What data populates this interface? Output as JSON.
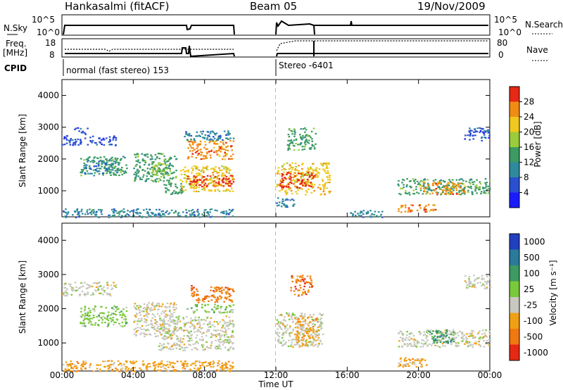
{
  "header": {
    "station": "Hankasalmi (fitACF)",
    "beam": "Beam 05",
    "date": "19/Nov/2009"
  },
  "status_panels": {
    "nsky_label": "N.Sky",
    "nsearch_label": "N.Search",
    "noise_ticks": [
      "10^5",
      "10^0"
    ],
    "freq_label_1": "Freq.",
    "freq_label_2": "[MHz]",
    "freq_ticks": [
      "18",
      "8"
    ],
    "nave_label": "Nave",
    "nave_ticks": [
      "80",
      "0"
    ],
    "cpid_label": "CPID",
    "cpid_modes": [
      {
        "name": "normal (fast stereo) 153",
        "start_hour": 0
      },
      {
        "name": "Stereo -6401",
        "start_hour": 12
      }
    ]
  },
  "panels": {
    "power": {
      "ylabel": "Slant Range [km]",
      "cbar_label": "Power [dB]"
    },
    "velocity": {
      "ylabel": "Slant Range [km]",
      "cbar_label": "Velocity [m s⁻¹]"
    },
    "xlabel": "Time UT"
  },
  "chart_data": {
    "type": "heatmap",
    "title": "Hankasalmi (fitACF)  Beam 05  19/Nov/2009",
    "x_ticks": [
      "00:00",
      "04:00",
      "08:00",
      "12:00",
      "16:00",
      "20:00",
      "00:00"
    ],
    "x_tick_hours": [
      0,
      4,
      8,
      12,
      16,
      20,
      24
    ],
    "xlim": [
      0,
      24
    ],
    "y_ticks": [
      1000,
      2000,
      3000,
      4000
    ],
    "ylim": [
      180,
      4500
    ],
    "data_gaps_hours": [
      [
        9.6,
        11.9
      ]
    ],
    "power_colorbar": {
      "tick_labels": [
        "4",
        "8",
        "12",
        "16",
        "20",
        "24",
        "28"
      ],
      "range": [
        0,
        30
      ],
      "colors": [
        "#1a1aff",
        "#2a4fd0",
        "#2f8a9e",
        "#3c9a62",
        "#9acc3c",
        "#f0c81e",
        "#f08c14",
        "#e62814"
      ]
    },
    "velocity_colorbar": {
      "tick_labels": [
        "1000",
        "500",
        "100",
        "25",
        "-25",
        "-100",
        "-500",
        "-1000"
      ],
      "colors": [
        "#2040c0",
        "#2a7a9a",
        "#3c9a62",
        "#7ac83c",
        "#c8c8c0",
        "#f0a014",
        "#f07810",
        "#e62814"
      ]
    },
    "scatter_regions_power": [
      {
        "t": [
          0.0,
          3.0
        ],
        "r": [
          2450,
          2750
        ],
        "color_index": 1
      },
      {
        "t": [
          0.6,
          1.4
        ],
        "r": [
          2800,
          3000
        ],
        "color_index": 1
      },
      {
        "t": [
          1.0,
          3.6
        ],
        "r": [
          1500,
          2100
        ],
        "color_index": 3
      },
      {
        "t": [
          1.2,
          3.0
        ],
        "r": [
          1550,
          1950
        ],
        "color_index": 2
      },
      {
        "t": [
          4.0,
          6.4
        ],
        "r": [
          1300,
          2200
        ],
        "color_index": 3
      },
      {
        "t": [
          5.0,
          6.0
        ],
        "r": [
          1500,
          1900
        ],
        "color_index": 4
      },
      {
        "t": [
          5.6,
          6.8
        ],
        "r": [
          900,
          1300
        ],
        "color_index": 3
      },
      {
        "t": [
          6.6,
          9.6
        ],
        "r": [
          1000,
          1800
        ],
        "color_index": 5
      },
      {
        "t": [
          7.0,
          9.6
        ],
        "r": [
          1150,
          1500
        ],
        "color_index": 7
      },
      {
        "t": [
          7.0,
          9.6
        ],
        "r": [
          2000,
          2600
        ],
        "color_index": 6
      },
      {
        "t": [
          6.8,
          9.6
        ],
        "r": [
          2600,
          2900
        ],
        "color_index": 2
      },
      {
        "t": [
          12.0,
          15.0
        ],
        "r": [
          900,
          1900
        ],
        "color_index": 5
      },
      {
        "t": [
          12.2,
          14.2
        ],
        "r": [
          1100,
          1600
        ],
        "color_index": 7
      },
      {
        "t": [
          12.6,
          14.2
        ],
        "r": [
          2300,
          3000
        ],
        "color_index": 3
      },
      {
        "t": [
          12.0,
          13.0
        ],
        "r": [
          500,
          800
        ],
        "color_index": 2
      },
      {
        "t": [
          18.8,
          24.0
        ],
        "r": [
          900,
          1400
        ],
        "color_index": 3
      },
      {
        "t": [
          20.0,
          22.6
        ],
        "r": [
          900,
          1300
        ],
        "color_index": 6
      },
      {
        "t": [
          18.8,
          21.0
        ],
        "r": [
          350,
          600
        ],
        "color_index": 6
      },
      {
        "t": [
          22.5,
          24.0
        ],
        "r": [
          2600,
          3000
        ],
        "color_index": 1
      },
      {
        "t": [
          16.0,
          18.0
        ],
        "r": [
          180,
          400
        ],
        "color_index": 2
      },
      {
        "t": [
          0.0,
          9.6
        ],
        "r": [
          180,
          450
        ],
        "color_index": 2
      }
    ],
    "scatter_regions_velocity": [
      {
        "t": [
          0.0,
          3.0
        ],
        "r": [
          2400,
          2800
        ],
        "color_index": 4
      },
      {
        "t": [
          1.0,
          3.6
        ],
        "r": [
          1500,
          2100
        ],
        "color_index": 3
      },
      {
        "t": [
          4.0,
          6.4
        ],
        "r": [
          1200,
          2200
        ],
        "color_index": 4
      },
      {
        "t": [
          5.4,
          9.6
        ],
        "r": [
          800,
          1800
        ],
        "color_index": 4
      },
      {
        "t": [
          7.2,
          9.6
        ],
        "r": [
          2200,
          2700
        ],
        "color_index": 6
      },
      {
        "t": [
          7.0,
          9.6
        ],
        "r": [
          1900,
          2150
        ],
        "color_index": 3
      },
      {
        "t": [
          12.0,
          14.6
        ],
        "r": [
          900,
          1900
        ],
        "color_index": 4
      },
      {
        "t": [
          13.0,
          14.4
        ],
        "r": [
          900,
          1800
        ],
        "color_index": 5
      },
      {
        "t": [
          12.8,
          14.0
        ],
        "r": [
          2400,
          3000
        ],
        "color_index": 6
      },
      {
        "t": [
          18.8,
          24.0
        ],
        "r": [
          900,
          1400
        ],
        "color_index": 4
      },
      {
        "t": [
          20.5,
          22.0
        ],
        "r": [
          1000,
          1400
        ],
        "color_index": 2
      },
      {
        "t": [
          18.8,
          20.6
        ],
        "r": [
          300,
          600
        ],
        "color_index": 5
      },
      {
        "t": [
          0.0,
          9.6
        ],
        "r": [
          180,
          500
        ],
        "color_index": 5
      },
      {
        "t": [
          22.5,
          24.0
        ],
        "r": [
          2600,
          3000
        ],
        "color_index": 4
      }
    ]
  }
}
